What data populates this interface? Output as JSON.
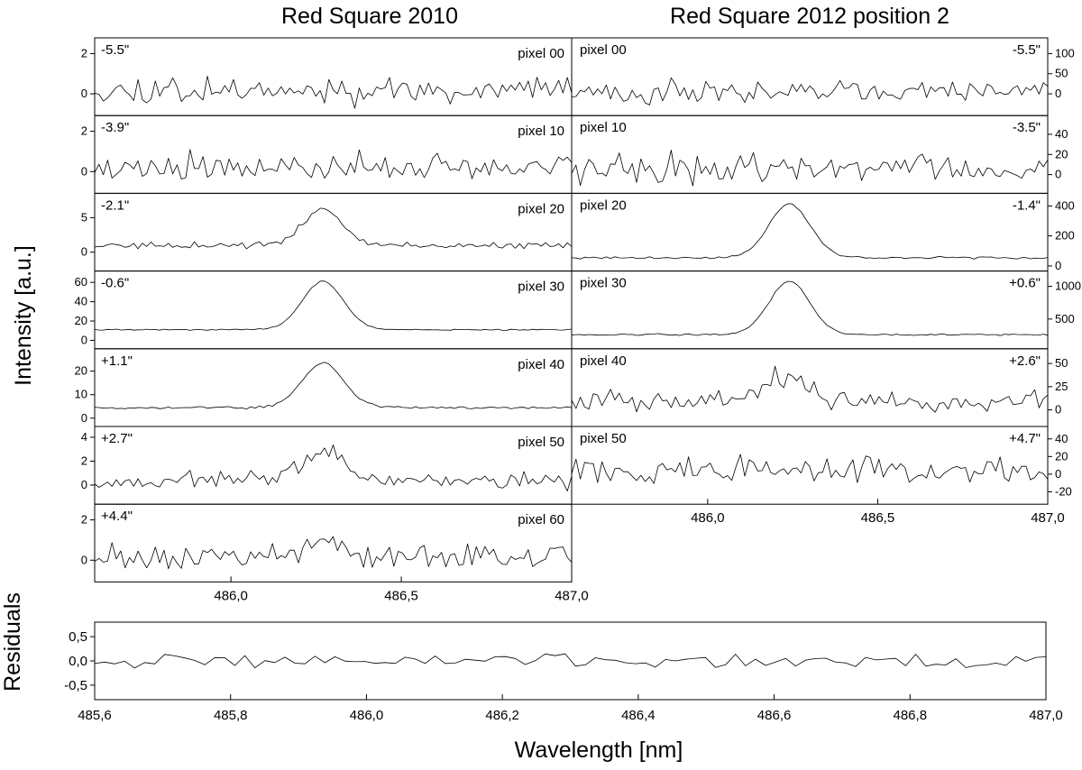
{
  "left_title": "Red Square 2010",
  "right_title": "Red Square 2012 position 2",
  "ylabel": "Intensity [a.u.]",
  "residuals_label": "Residuals",
  "xlabel": "Wavelength [nm]",
  "chart_data": [
    {
      "type": "line",
      "title": "Red Square 2010",
      "xlim": [
        485.6,
        487.0
      ],
      "x_ticks": [
        "486,0",
        "486,5",
        "487,0"
      ],
      "peak_center_nm": 486.27,
      "panels": [
        {
          "pixel": "pixel 00",
          "offset": "-5.5\"",
          "ylim": [
            -0.9,
            2.6
          ],
          "yticks": [
            0,
            2
          ],
          "ytick_labels": [
            "0",
            "2"
          ],
          "peak": 0.0,
          "noise": 0.45,
          "baseline": 0.2,
          "seed": 11
        },
        {
          "pixel": "pixel 10",
          "offset": "-3.9\"",
          "ylim": [
            -0.9,
            2.6
          ],
          "yticks": [
            0,
            2
          ],
          "ytick_labels": [
            "0",
            "2"
          ],
          "peak": 0.0,
          "noise": 0.45,
          "baseline": 0.2,
          "seed": 23
        },
        {
          "pixel": "pixel 20",
          "offset": "-2.1\"",
          "ylim": [
            -2.2,
            8.0
          ],
          "yticks": [
            0,
            5
          ],
          "ytick_labels": [
            "0",
            "5"
          ],
          "peak": 5.0,
          "noise": 0.35,
          "baseline": 1.0,
          "seed": 37
        },
        {
          "pixel": "pixel 30",
          "offset": "-0.6\"",
          "ylim": [
            -5,
            68
          ],
          "yticks": [
            0,
            20,
            40,
            60
          ],
          "ytick_labels": [
            "0",
            "20",
            "40",
            "60"
          ],
          "peak": 50,
          "noise": 0.5,
          "baseline": 11,
          "seed": 41
        },
        {
          "pixel": "pixel 40",
          "offset": "+1.1\"",
          "ylim": [
            -2,
            28
          ],
          "yticks": [
            0,
            10,
            20
          ],
          "ytick_labels": [
            "0",
            "10",
            "20"
          ],
          "peak": 19,
          "noise": 0.4,
          "baseline": 4.5,
          "seed": 53
        },
        {
          "pixel": "pixel 50",
          "offset": "+2.7\"",
          "ylim": [
            -1.3,
            4.6
          ],
          "yticks": [
            0,
            2,
            4
          ],
          "ytick_labels": [
            "0",
            "2",
            "4"
          ],
          "peak": 2.3,
          "noise": 0.5,
          "baseline": 0.4,
          "seed": 67
        },
        {
          "pixel": "pixel 60",
          "offset": "+4.4\"",
          "ylim": [
            -0.9,
            2.6
          ],
          "yticks": [
            0,
            2
          ],
          "ytick_labels": [
            "0",
            "2"
          ],
          "peak": 0.7,
          "noise": 0.45,
          "baseline": 0.2,
          "seed": 79
        }
      ]
    },
    {
      "type": "line",
      "title": "Red Square 2012 position 2",
      "xlim": [
        485.6,
        487.0
      ],
      "x_ticks": [
        "486,0",
        "486,5",
        "487,0"
      ],
      "peak_center_nm": 486.24,
      "panels": [
        {
          "pixel": "pixel 00",
          "offset": "-5.5\"",
          "ylim": [
            -45,
            130
          ],
          "yticks": [
            0,
            50,
            100
          ],
          "ytick_labels": [
            "0",
            "50",
            "100"
          ],
          "peak": 0,
          "noise": 22,
          "baseline": 5,
          "seed": 101
        },
        {
          "pixel": "pixel 10",
          "offset": "-3.5\"",
          "ylim": [
            -15,
            55
          ],
          "yticks": [
            0,
            20,
            40
          ],
          "ytick_labels": [
            "0",
            "20",
            "40"
          ],
          "peak": 0,
          "noise": 10,
          "baseline": 6,
          "seed": 113
        },
        {
          "pixel": "pixel 20",
          "offset": "-1.4\"",
          "ylim": [
            -10,
            460
          ],
          "yticks": [
            0,
            200,
            400
          ],
          "ytick_labels": [
            "0",
            "200",
            "400"
          ],
          "peak": 360,
          "noise": 5,
          "baseline": 55,
          "seed": 127
        },
        {
          "pixel": "pixel 30",
          "offset": "+0.6\"",
          "ylim": [
            100,
            1180
          ],
          "yticks": [
            500,
            1000
          ],
          "ytick_labels": [
            "500",
            "1000"
          ],
          "peak": 820,
          "noise": 10,
          "baseline": 260,
          "seed": 131
        },
        {
          "pixel": "pixel 40",
          "offset": "+2.6\"",
          "ylim": [
            -14,
            62
          ],
          "yticks": [
            0,
            25,
            50
          ],
          "ytick_labels": [
            "0",
            "25",
            "50"
          ],
          "peak": 26,
          "noise": 8,
          "baseline": 10,
          "seed": 149
        },
        {
          "pixel": "pixel 50",
          "offset": "+4.7\"",
          "ylim": [
            -30,
            50
          ],
          "yticks": [
            -20,
            0,
            20,
            40
          ],
          "ytick_labels": [
            "-20",
            "0",
            "20",
            "40"
          ],
          "peak": 0,
          "noise": 11,
          "baseline": 5,
          "seed": 157
        }
      ]
    },
    {
      "type": "line",
      "title": "Residuals",
      "xlim": [
        485.6,
        487.0
      ],
      "x_ticks": [
        "485,6",
        "485,8",
        "486,0",
        "486,2",
        "486,4",
        "486,6",
        "486,8",
        "487,0"
      ],
      "ylim": [
        -0.8,
        0.8
      ],
      "yticks": [
        -0.5,
        0.0,
        0.5
      ],
      "ytick_labels": [
        "-0,5",
        "0,0",
        "0,5"
      ],
      "noise": 0.15,
      "seed": 211
    }
  ]
}
